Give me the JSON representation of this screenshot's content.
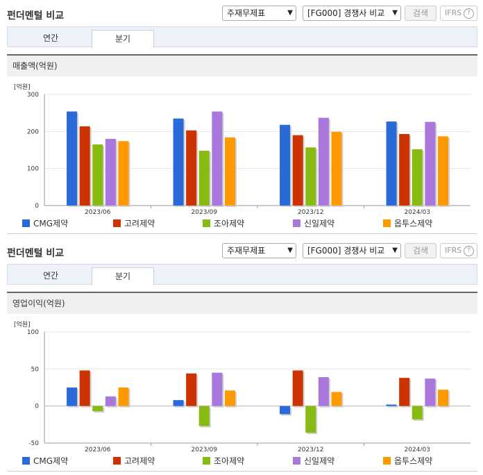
{
  "sections": [
    {
      "title": "펀더멘털 비교",
      "select_type": "주재무제표",
      "select_group": "[FG000] 경쟁사 비교",
      "search_label": "검색",
      "ifrs_label": "IFRS",
      "help_icon": "?",
      "tabs": [
        "연간",
        "분기"
      ],
      "metric": "매출액(억원)",
      "unit": "[억원]"
    },
    {
      "title": "펀더멘털 비교",
      "select_type": "주재무제표",
      "select_group": "[FG000] 경쟁사 비교",
      "search_label": "검색",
      "ifrs_label": "IFRS",
      "help_icon": "?",
      "tabs": [
        "연간",
        "분기"
      ],
      "metric": "영업이익(억원)",
      "unit": "[억원]"
    }
  ],
  "legend_colors": [
    "#2a6ad8",
    "#cc3300",
    "#88bb11",
    "#aa77dd",
    "#ff9900"
  ],
  "chart_data": [
    {
      "type": "bar",
      "title": "매출액(억원)",
      "ylabel": "[억원]",
      "categories": [
        "2023/06",
        "2023/09",
        "2023/12",
        "2024/03"
      ],
      "ylim": [
        0,
        300
      ],
      "yticks": [
        0,
        100,
        200,
        300
      ],
      "grid": true,
      "legend_position": "bottom",
      "series": [
        {
          "name": "CMG제약",
          "values": [
            254,
            235,
            218,
            227
          ]
        },
        {
          "name": "고려제약",
          "values": [
            214,
            203,
            190,
            193
          ]
        },
        {
          "name": "조아제약",
          "values": [
            165,
            148,
            157,
            152
          ]
        },
        {
          "name": "신일제약",
          "values": [
            180,
            254,
            237,
            226
          ]
        },
        {
          "name": "옵투스제약",
          "values": [
            174,
            184,
            199,
            187
          ]
        }
      ]
    },
    {
      "type": "bar",
      "title": "영업이익(억원)",
      "ylabel": "[억원]",
      "categories": [
        "2023/06",
        "2023/09",
        "2023/12",
        "2024/03"
      ],
      "ylim": [
        -50,
        100
      ],
      "yticks": [
        -50,
        0,
        50,
        100
      ],
      "grid": true,
      "legend_position": "bottom",
      "series": [
        {
          "name": "CMG제약",
          "values": [
            25,
            8,
            -11,
            2
          ]
        },
        {
          "name": "고려제약",
          "values": [
            48,
            44,
            48,
            38
          ]
        },
        {
          "name": "조아제약",
          "values": [
            -7,
            -27,
            -36,
            -18
          ]
        },
        {
          "name": "신일제약",
          "values": [
            13,
            45,
            39,
            37
          ]
        },
        {
          "name": "옵투스제약",
          "values": [
            25,
            21,
            19,
            22
          ]
        }
      ]
    }
  ]
}
